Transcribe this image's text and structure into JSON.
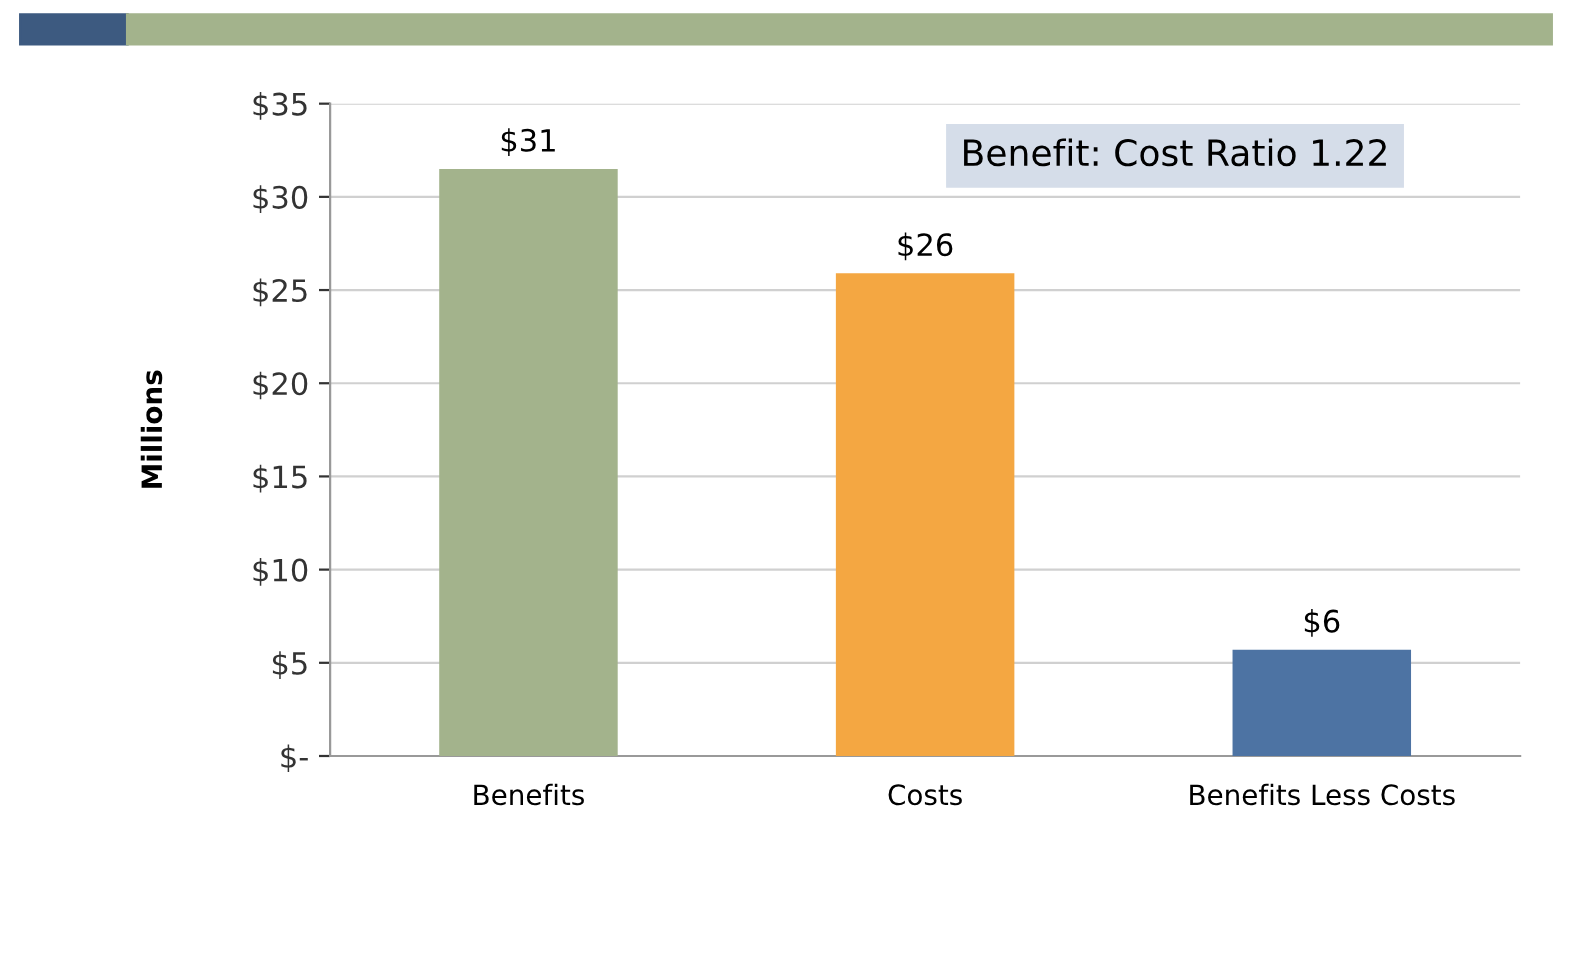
{
  "chart_data": {
    "type": "bar",
    "categories": [
      "Benefits",
      "Costs",
      "Benefits Less Costs"
    ],
    "values": [
      31.5,
      25.9,
      5.7
    ],
    "colors": [
      "#a3b38c",
      "#f4a742",
      "#4d73a3"
    ],
    "value_labels": [
      "$31",
      "$26",
      "$6"
    ],
    "ylabel": "Millions",
    "ylim": [
      0,
      35
    ],
    "yticks": [
      {
        "value": 0,
        "label": "$-"
      },
      {
        "value": 5,
        "label": "$5"
      },
      {
        "value": 10,
        "label": "$10"
      },
      {
        "value": 15,
        "label": "$15"
      },
      {
        "value": 20,
        "label": "$20"
      },
      {
        "value": 25,
        "label": "$25"
      },
      {
        "value": 30,
        "label": "$30"
      },
      {
        "value": 35,
        "label": "$35"
      }
    ],
    "grid": "y",
    "annotations": [
      "Benefit: Cost Ratio 1.22"
    ]
  }
}
